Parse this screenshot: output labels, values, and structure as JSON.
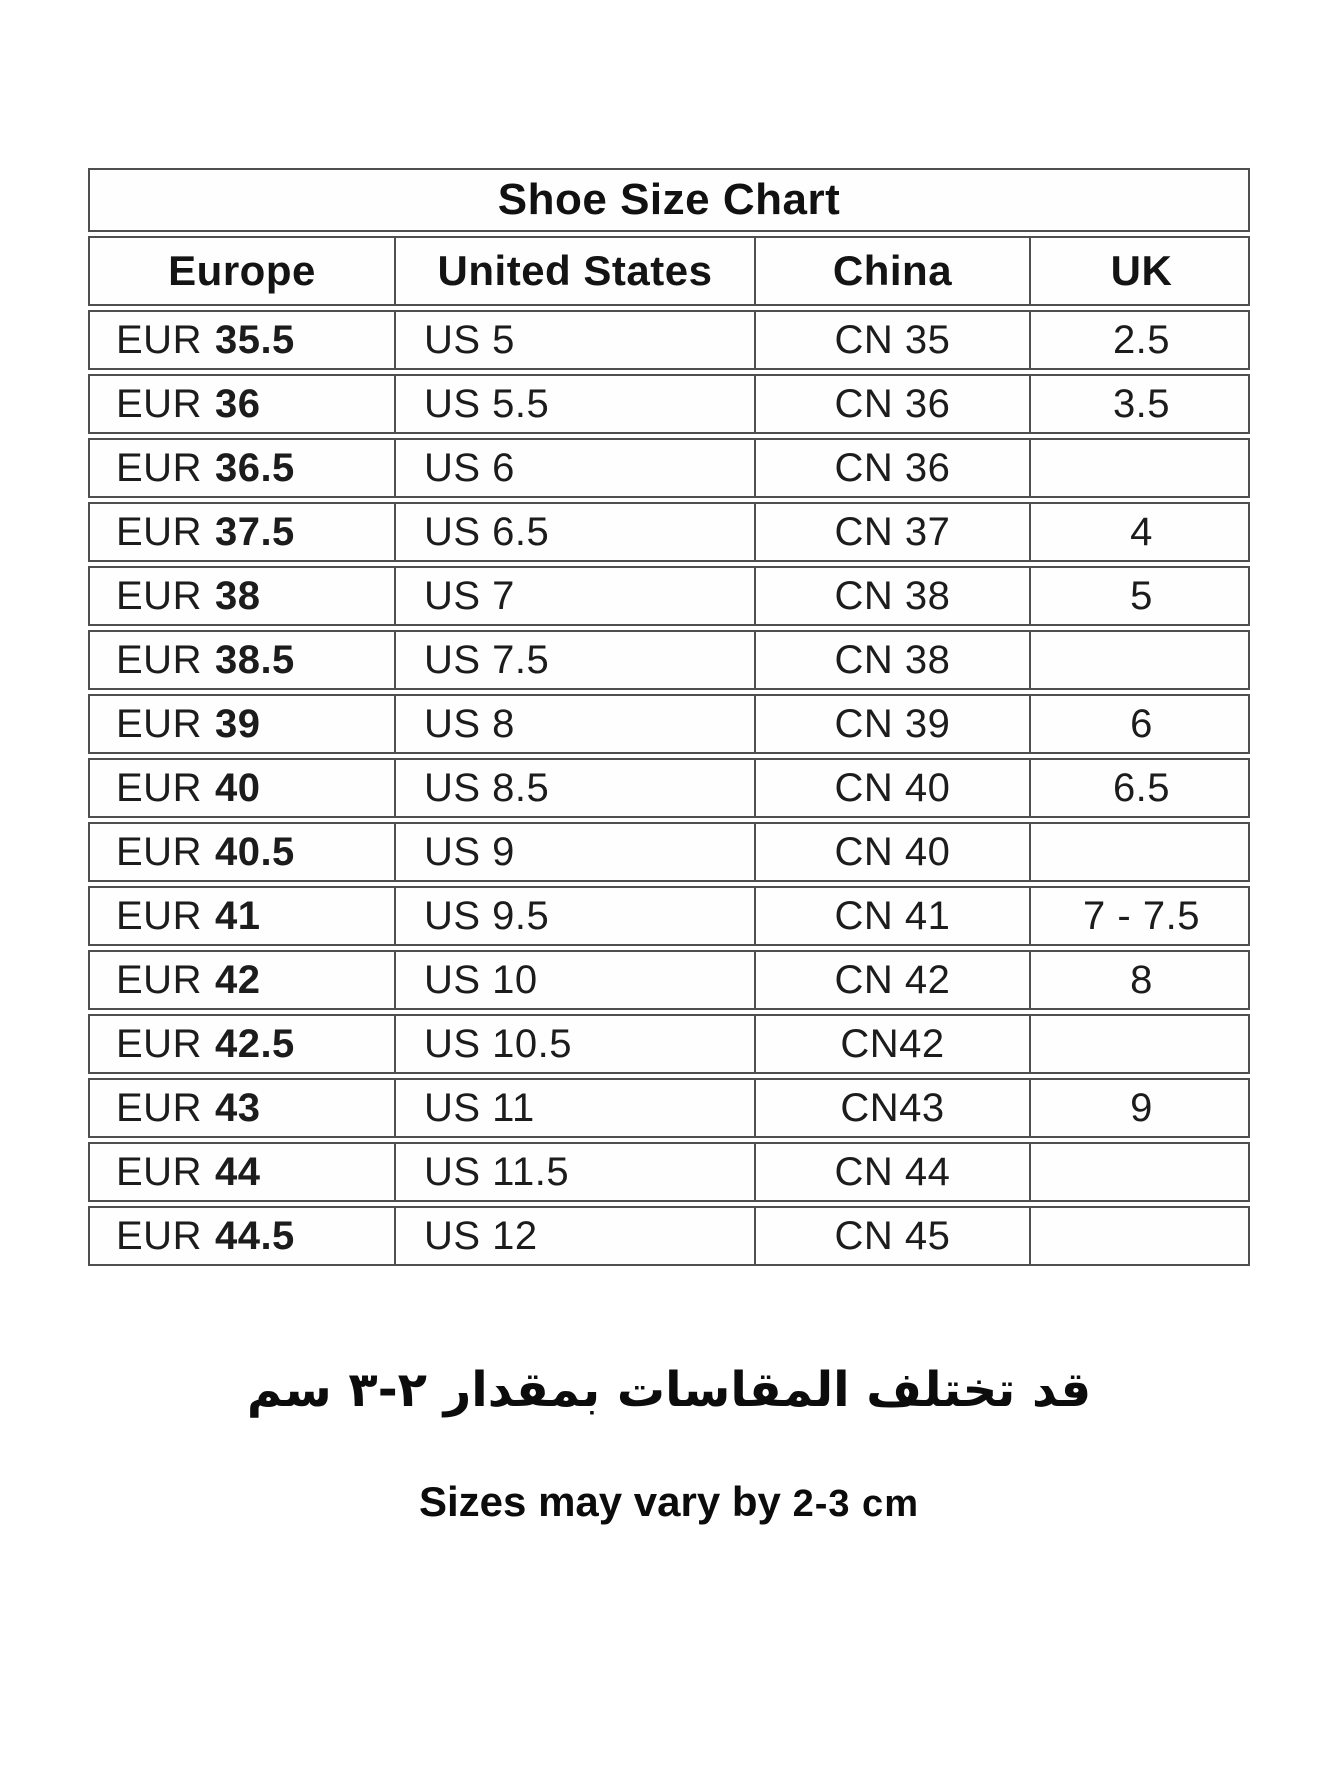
{
  "table": {
    "title": "Shoe Size Chart",
    "columns": [
      "Europe",
      "United States",
      "China",
      "UK"
    ],
    "rows": [
      {
        "eur_prefix": "EUR",
        "eur": "35.5",
        "us": "US 5",
        "cn": "CN 35",
        "uk": "2.5"
      },
      {
        "eur_prefix": "EUR",
        "eur": "36",
        "us": "US 5.5",
        "cn": "CN 36",
        "uk": "3.5"
      },
      {
        "eur_prefix": "EUR",
        "eur": "36.5",
        "us": "US 6",
        "cn": "CN 36",
        "uk": ""
      },
      {
        "eur_prefix": "EUR",
        "eur": "37.5",
        "us": "US 6.5",
        "cn": "CN 37",
        "uk": "4"
      },
      {
        "eur_prefix": "EUR",
        "eur": "38",
        "us": "US 7",
        "cn": "CN 38",
        "uk": "5"
      },
      {
        "eur_prefix": "EUR",
        "eur": "38.5",
        "us": "US 7.5",
        "cn": "CN 38",
        "uk": ""
      },
      {
        "eur_prefix": "EUR",
        "eur": "39",
        "us": "US 8",
        "cn": "CN 39",
        "uk": "6"
      },
      {
        "eur_prefix": "EUR",
        "eur": "40",
        "us": "US 8.5",
        "cn": "CN 40",
        "uk": "6.5"
      },
      {
        "eur_prefix": "EUR",
        "eur": "40.5",
        "us": "US 9",
        "cn": "CN 40",
        "uk": ""
      },
      {
        "eur_prefix": "EUR",
        "eur": "41",
        "us": "US 9.5",
        "cn": "CN 41",
        "uk": "7 - 7.5"
      },
      {
        "eur_prefix": "EUR",
        "eur": "42",
        "us": "US 10",
        "cn": "CN 42",
        "uk": "8"
      },
      {
        "eur_prefix": "EUR",
        "eur": "42.5",
        "us": "US 10.5",
        "cn": "CN42",
        "uk": ""
      },
      {
        "eur_prefix": "EUR",
        "eur": "43",
        "us": "US 11",
        "cn": "CN43",
        "uk": "9"
      },
      {
        "eur_prefix": "EUR",
        "eur": "44",
        "us": "US 11.5",
        "cn": "CN 44",
        "uk": ""
      },
      {
        "eur_prefix": "EUR",
        "eur": "44.5",
        "us": "US 12",
        "cn": "CN 45",
        "uk": ""
      }
    ]
  },
  "notes": {
    "arabic": "قد تختلف المقاسات بمقدار ٢-٣ سم",
    "english_bold": "Sizes may vary by",
    "english_value": "2-3 cm"
  },
  "colors": {
    "border": "#4f4f4f",
    "text": "#1c1c1c",
    "background": "#ffffff"
  },
  "chart_data": {
    "type": "table",
    "title": "Shoe Size Chart",
    "columns": [
      "Europe",
      "United States",
      "China",
      "UK"
    ],
    "rows": [
      [
        "EUR 35.5",
        "US 5",
        "CN 35",
        "2.5"
      ],
      [
        "EUR 36",
        "US 5.5",
        "CN 36",
        "3.5"
      ],
      [
        "EUR 36.5",
        "US 6",
        "CN 36",
        ""
      ],
      [
        "EUR 37.5",
        "US 6.5",
        "CN 37",
        "4"
      ],
      [
        "EUR 38",
        "US 7",
        "CN 38",
        "5"
      ],
      [
        "EUR 38.5",
        "US 7.5",
        "CN 38",
        ""
      ],
      [
        "EUR 39",
        "US 8",
        "CN 39",
        "6"
      ],
      [
        "EUR 40",
        "US 8.5",
        "CN 40",
        "6.5"
      ],
      [
        "EUR 40.5",
        "US 9",
        "CN 40",
        ""
      ],
      [
        "EUR 41",
        "US 9.5",
        "CN 41",
        "7 - 7.5"
      ],
      [
        "EUR 42",
        "US 10",
        "CN 42",
        "8"
      ],
      [
        "EUR 42.5",
        "US 10.5",
        "CN42",
        ""
      ],
      [
        "EUR 43",
        "US 11",
        "CN43",
        "9"
      ],
      [
        "EUR 44",
        "US 11.5",
        "CN 44",
        ""
      ],
      [
        "EUR 44.5",
        "US 12",
        "CN 45",
        ""
      ]
    ],
    "annotations": [
      "قد تختلف المقاسات بمقدار ٢-٣ سم",
      "Sizes may vary by 2-3 cm"
    ]
  }
}
